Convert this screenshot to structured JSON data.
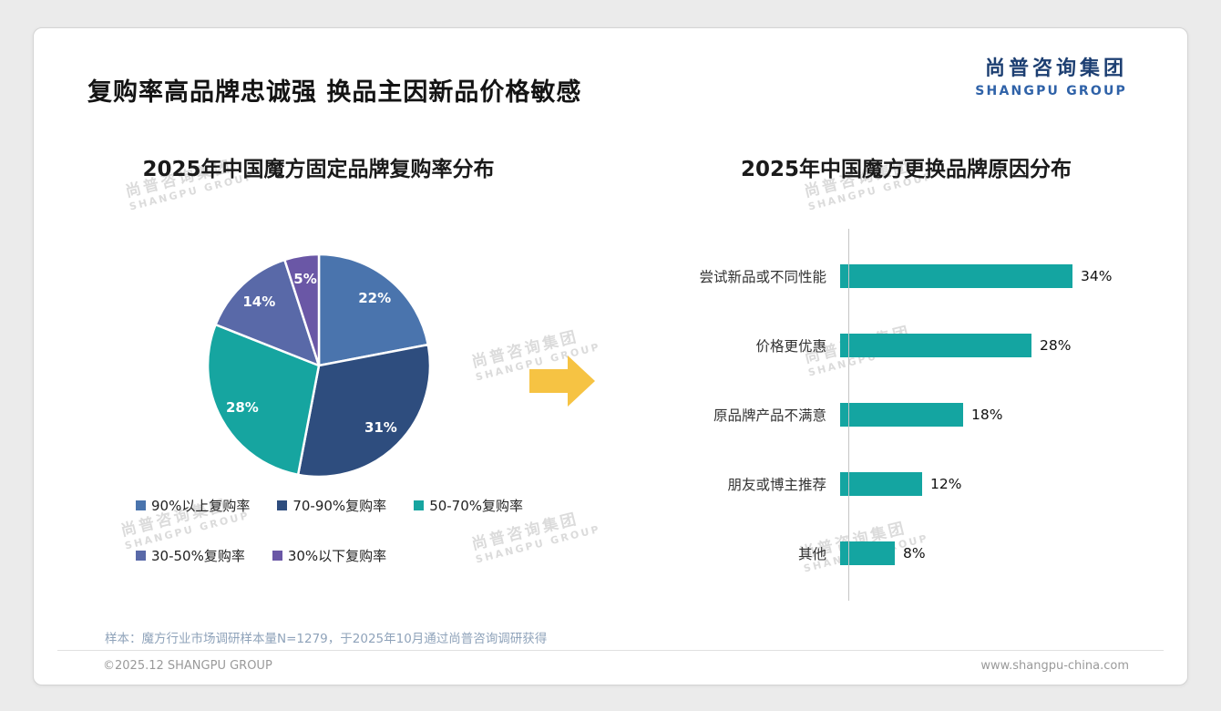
{
  "page": {
    "title": "复购率高品牌忠诚强 换品主因新品价格敏感",
    "logo": {
      "cn": "尚普咨询集团",
      "en": "SHANGPU GROUP"
    },
    "watermark": {
      "line1": "尚普咨询集团",
      "line2": "SHANGPU GROUP"
    },
    "footnote": "样本：魔方行业市场调研样本量N=1279，于2025年10月通过尚普咨询调研获得",
    "footer": {
      "left": "©2025.12 SHANGPU GROUP",
      "right": "www.shangpu-china.com"
    }
  },
  "colors": {
    "accent_teal": "#14a5a1",
    "logo_navy": "#1d3f72",
    "logo_blue": "#2f62a8",
    "arrow_yellow": "#f6c343"
  },
  "chart_data": [
    {
      "type": "pie",
      "title": "2025年中国魔方固定品牌复购率分布",
      "labels": [
        "90%以上复购率",
        "70-90%复购率",
        "50-70%复购率",
        "30-50%复购率",
        "30%以下复购率"
      ],
      "values": [
        22,
        31,
        28,
        14,
        5
      ],
      "colors": [
        "#4a74ad",
        "#2e4d7e",
        "#16a5a0",
        "#5969a8",
        "#6a57a6"
      ],
      "value_suffix": "%",
      "legend_position": "bottom"
    },
    {
      "type": "bar",
      "orientation": "horizontal",
      "title": "2025年中国魔方更换品牌原因分布",
      "categories": [
        "尝试新品或不同性能",
        "价格更优惠",
        "原品牌产品不满意",
        "朋友或博主推荐",
        "其他"
      ],
      "values": [
        34,
        28,
        18,
        12,
        8
      ],
      "value_suffix": "%",
      "bar_color": "#14a5a1",
      "xlim": [
        0,
        40
      ],
      "grid": false,
      "legend_position": "none"
    }
  ]
}
